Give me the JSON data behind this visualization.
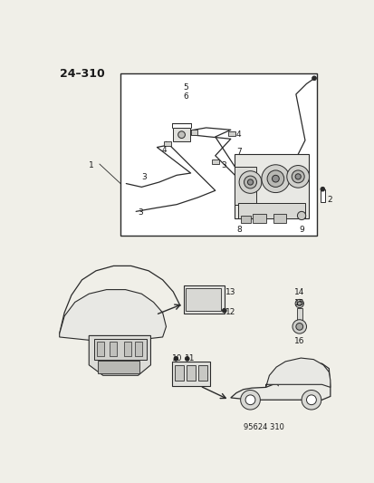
{
  "title": "24–310",
  "footer": "95624 310",
  "bg_color": "#f0efe8",
  "line_color": "#2a2a2a",
  "text_color": "#1a1a1a",
  "title_fontsize": 9,
  "label_fontsize": 6.5,
  "footer_fontsize": 6
}
